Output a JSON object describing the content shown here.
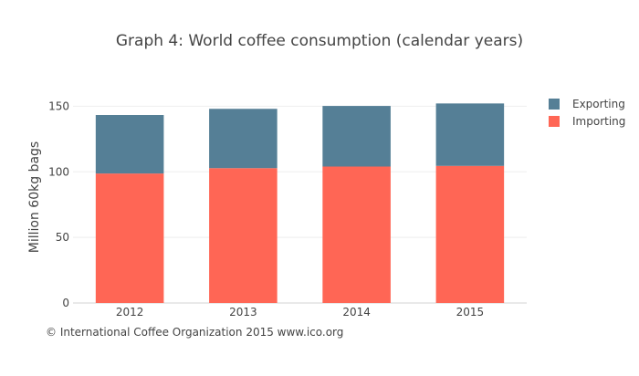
{
  "chart_data": {
    "type": "bar",
    "stacked": true,
    "title": "Graph 4: World coffee consumption (calendar years)",
    "xlabel": "",
    "ylabel": "Million 60kg bags",
    "categories": [
      "2012",
      "2013",
      "2014",
      "2015"
    ],
    "series": [
      {
        "name": "Importing",
        "values": [
          98.7,
          102.8,
          104.0,
          104.5
        ],
        "color": "#ff6655"
      },
      {
        "name": "Exporting",
        "values": [
          44.6,
          45.2,
          46.2,
          47.6
        ],
        "color": "#557f96"
      }
    ],
    "ylim": [
      0,
      160
    ],
    "yticks": [
      0,
      50,
      100,
      150
    ],
    "grid": true,
    "legend_position": "top-right",
    "legend_order": [
      "Exporting",
      "Importing"
    ],
    "source_note": "© International Coffee Organization 2015 www.ico.org"
  }
}
